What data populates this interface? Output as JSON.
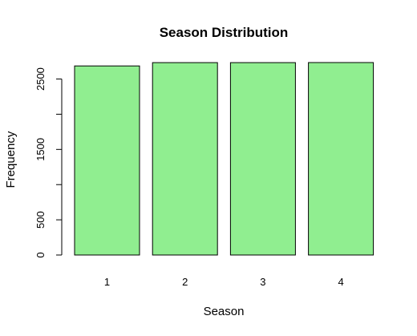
{
  "chart_data": {
    "type": "bar",
    "title": "Season Distribution",
    "xlabel": "Season",
    "ylabel": "Frequency",
    "categories": [
      "1",
      "2",
      "3",
      "4"
    ],
    "values": [
      2686,
      2733,
      2733,
      2734
    ],
    "ylim": [
      0,
      2734
    ],
    "yticks": [
      0,
      500,
      1500,
      2500
    ],
    "grid": false,
    "bar_color": "#90EE90"
  }
}
